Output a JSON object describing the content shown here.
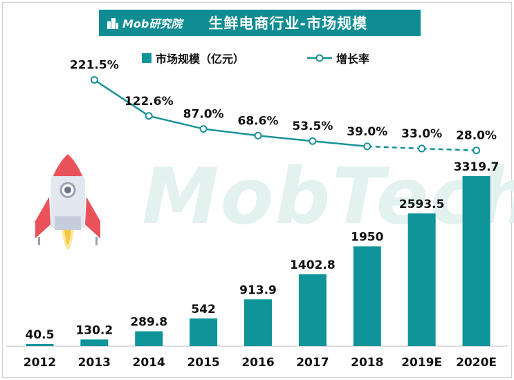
{
  "header": {
    "brand": "Mob研究院",
    "title": "生鲜电商行业-市场规模"
  },
  "watermark": "MobTech",
  "legend": {
    "bar_label": "市场规模（亿元）",
    "line_label": "增长率"
  },
  "colors": {
    "bar": "#0e9499",
    "line": "#1a9199",
    "banner": "#108c93"
  },
  "chart_data": {
    "type": "bar",
    "categories": [
      "2012",
      "2013",
      "2014",
      "2015",
      "2016",
      "2017",
      "2018",
      "2019E",
      "2020E"
    ],
    "series": [
      {
        "name": "市场规模（亿元）",
        "type": "bar",
        "values": [
          40.5,
          130.2,
          289.8,
          542,
          913.9,
          1402.8,
          1950,
          2593.5,
          3319.7
        ],
        "labels": [
          "40.5",
          "130.2",
          "289.8",
          "542",
          "913.9",
          "1402.8",
          "1950",
          "2593.5",
          "3319.7"
        ]
      },
      {
        "name": "增长率",
        "type": "line",
        "values": [
          null,
          221.5,
          122.6,
          87.0,
          68.6,
          53.5,
          39.0,
          33.0,
          28.0
        ],
        "labels": [
          "",
          "221.5%",
          "122.6%",
          "87.0%",
          "68.6%",
          "53.5%",
          "39.0%",
          "33.0%",
          "28.0%"
        ],
        "dashed_from": "2018"
      }
    ]
  }
}
